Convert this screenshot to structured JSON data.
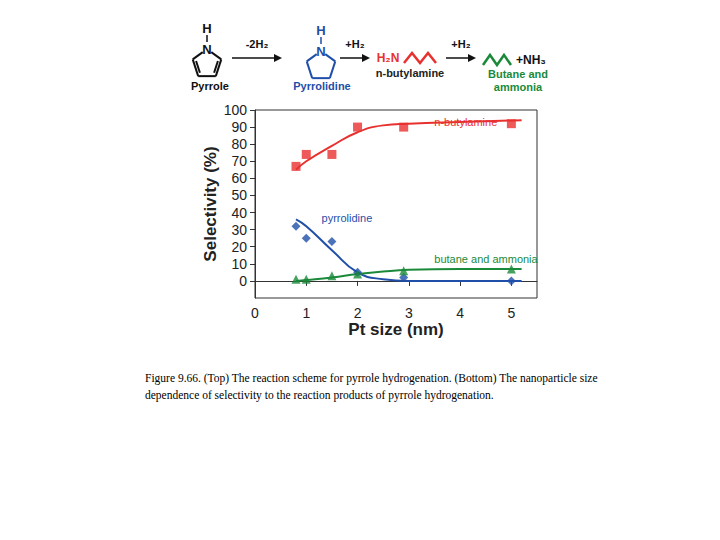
{
  "chart_data": {
    "type": "scatter",
    "xlabel": "Pt size (nm)",
    "ylabel": "Selectivity (%)",
    "xlim": [
      0,
      5.5
    ],
    "xticks": [
      0,
      1,
      2,
      3,
      4,
      5
    ],
    "ylim": [
      -10,
      100
    ],
    "yticks": [
      0,
      10,
      20,
      30,
      40,
      50,
      60,
      70,
      80,
      90,
      100
    ],
    "grid": false,
    "series": [
      {
        "name": "n-butylamine",
        "color": "#e8312f",
        "marker": "square",
        "x": [
          0.8,
          1.0,
          1.5,
          2.0,
          2.9,
          5.0
        ],
        "values": [
          67,
          74,
          74,
          90,
          90,
          92
        ],
        "fit": {
          "x": [
            0.8,
            1.0,
            1.5,
            2.0,
            2.5,
            3.0,
            4.0,
            5.2
          ],
          "values": [
            65,
            70,
            79,
            87,
            91,
            92,
            93,
            94
          ]
        }
      },
      {
        "name": "pyrrolidine",
        "color": "#1f4fa8",
        "marker": "diamond",
        "x": [
          0.8,
          1.0,
          1.5,
          2.0,
          2.9,
          5.0
        ],
        "values": [
          32,
          25,
          23,
          5,
          2,
          0
        ],
        "fit": {
          "x": [
            0.8,
            1.0,
            1.5,
            2.0,
            2.5,
            3.0,
            4.0,
            5.2
          ],
          "values": [
            36,
            32,
            18,
            5,
            1,
            0,
            0,
            0
          ]
        }
      },
      {
        "name": "butane and ammonia",
        "color": "#1a8a3a",
        "marker": "triangle",
        "x": [
          0.8,
          1.0,
          1.5,
          2.0,
          2.9,
          5.0
        ],
        "values": [
          1,
          1,
          3,
          4,
          6,
          7
        ],
        "fit": {
          "x": [
            0.8,
            1.0,
            1.5,
            2.0,
            2.5,
            3.0,
            4.0,
            5.2
          ],
          "values": [
            0,
            0.5,
            2,
            4,
            5.5,
            6.5,
            7,
            7
          ]
        }
      }
    ]
  },
  "scheme": {
    "species": [
      {
        "name": "Pyrrole",
        "atoms": [
          "H",
          "N"
        ],
        "color": "#111111"
      },
      {
        "name": "Pyrrolidine",
        "atoms": [
          "H",
          "N"
        ],
        "color": "#1f4fa8"
      },
      {
        "name": "n-butylamine",
        "group": "H₂N",
        "color": "#e8312f"
      },
      {
        "name": [
          "Butane and",
          "ammonia"
        ],
        "coproduct": "+NH₃",
        "color": "#1a8a3a"
      }
    ],
    "steps": [
      "-2H₂",
      "+H₂",
      "+H₂"
    ]
  },
  "caption": [
    "Figure 9.66. (Top) The reaction scheme for pyrrole hydrogenation. (Bottom) The nanoparticle size",
    "dependence of selectivity to the reaction products of pyrrole hydrogenation."
  ]
}
